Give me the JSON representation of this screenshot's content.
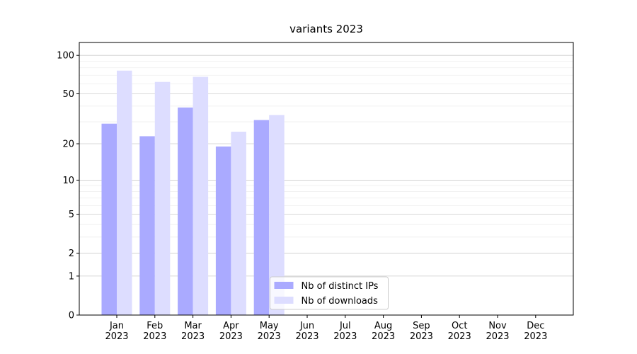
{
  "chart_data": {
    "type": "bar",
    "title": "variants 2023",
    "yscale": "log1p",
    "categories": [
      "Jan\n2023",
      "Feb\n2023",
      "Mar\n2023",
      "Apr\n2023",
      "May\n2023",
      "Jun\n2023",
      "Jul\n2023",
      "Aug\n2023",
      "Sep\n2023",
      "Oct\n2023",
      "Nov\n2023",
      "Dec\n2023"
    ],
    "series": [
      {
        "name": "Nb of distinct IPs",
        "color": "#aaaaff",
        "values": [
          29,
          23,
          39,
          19,
          31,
          null,
          null,
          null,
          null,
          null,
          null,
          null
        ]
      },
      {
        "name": "Nb of downloads",
        "color": "#ddddff",
        "values": [
          76,
          62,
          68,
          25,
          34,
          null,
          null,
          null,
          null,
          null,
          null,
          null
        ]
      }
    ],
    "ylim": [
      0,
      126
    ],
    "yticks": [
      0,
      1,
      2,
      5,
      10,
      20,
      50,
      100
    ],
    "minor_yticks": [
      3,
      4,
      6,
      7,
      8,
      9,
      30,
      40,
      60,
      70,
      80,
      90
    ],
    "grid": true,
    "legend": "lower center"
  }
}
